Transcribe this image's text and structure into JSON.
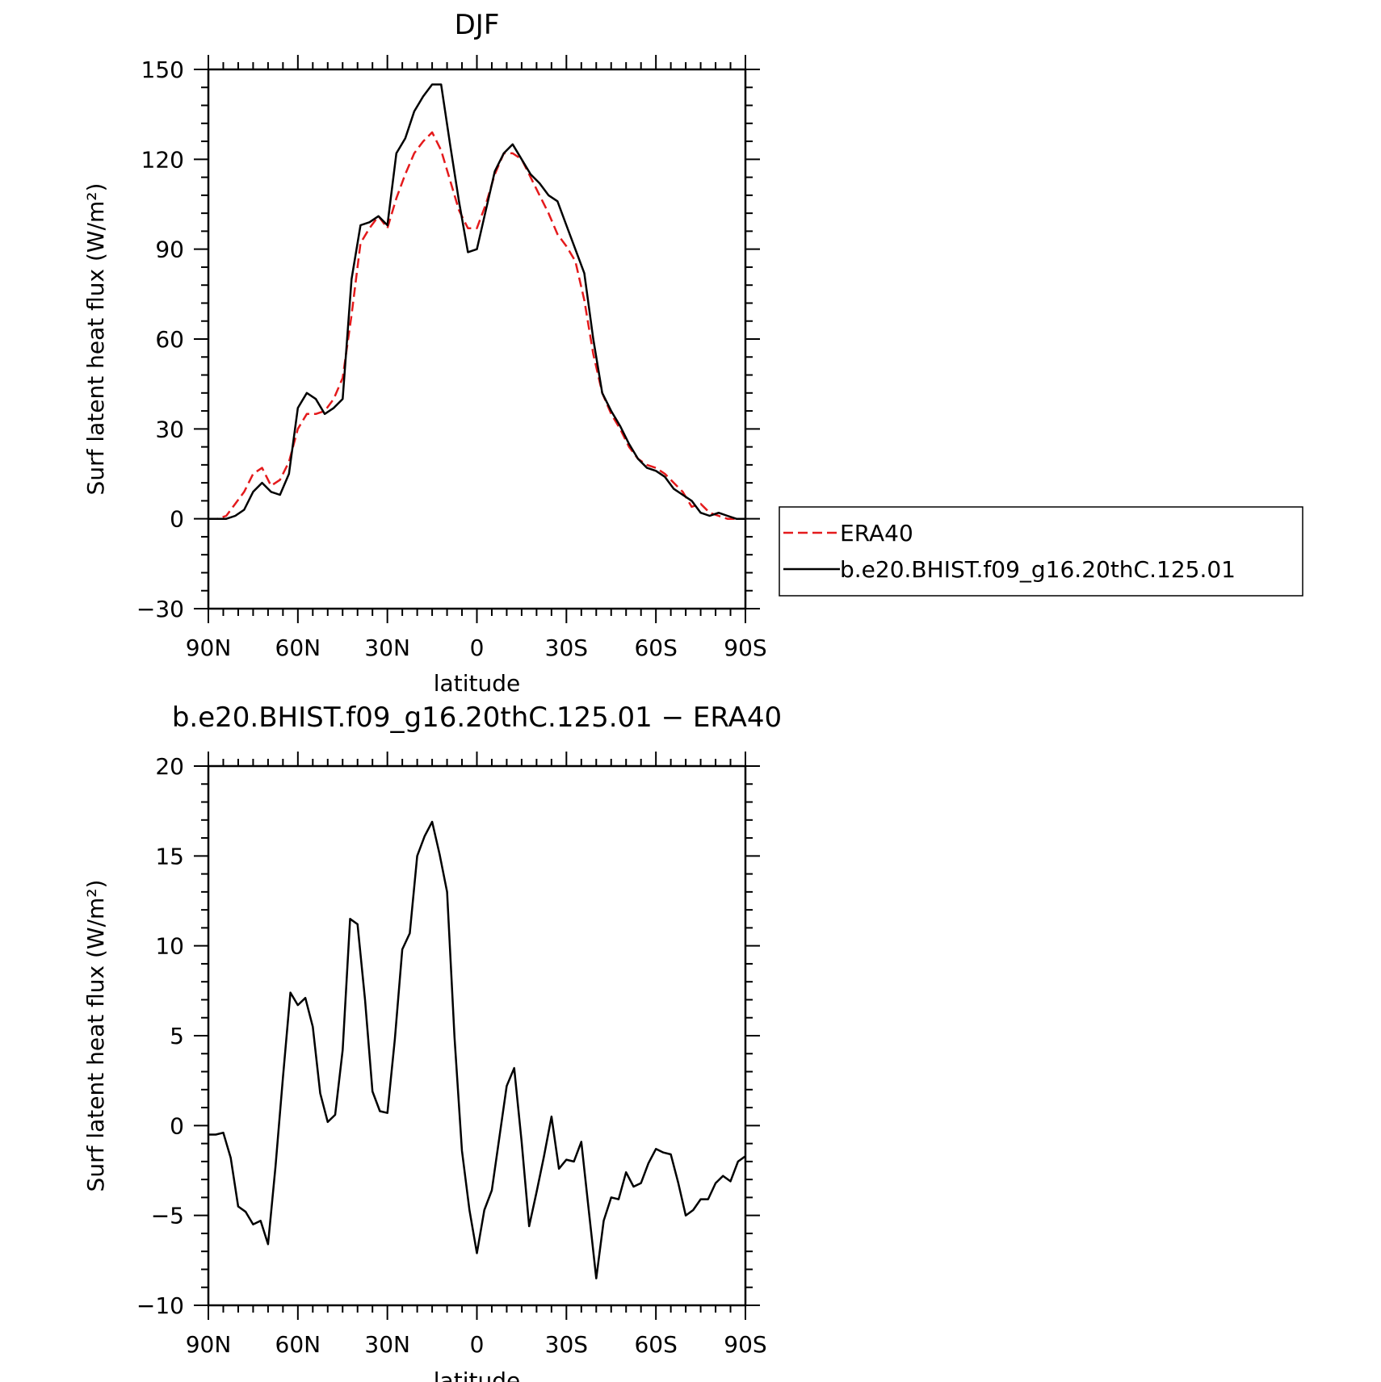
{
  "chart_data": [
    {
      "type": "line",
      "title": "DJF",
      "xlabel": "latitude",
      "ylabel": "Surf latent heat flux (W/m²)",
      "ylim": [
        -30,
        150
      ],
      "yticks": [
        -30,
        0,
        30,
        60,
        90,
        120,
        150
      ],
      "xlim": [
        90,
        -90
      ],
      "xticks": [
        90,
        60,
        30,
        0,
        -30,
        -60,
        -90
      ],
      "xticklabels": [
        "90N",
        "60N",
        "30N",
        "0",
        "30S",
        "60S",
        "90S"
      ],
      "legend_position": "right",
      "series": [
        {
          "name": "ERA40",
          "color": "#e41a1c",
          "dash": true,
          "x": [
            90,
            87,
            84,
            81,
            78,
            75,
            72,
            69,
            66,
            63,
            60,
            57,
            54,
            51,
            48,
            45,
            42,
            39,
            36,
            33,
            30,
            27,
            24,
            21,
            18,
            15,
            12,
            9,
            6,
            3,
            0,
            -3,
            -6,
            -9,
            -12,
            -15,
            -18,
            -21,
            -24,
            -27,
            -30,
            -33,
            -36,
            -39,
            -42,
            -45,
            -48,
            -51,
            -54,
            -57,
            -60,
            -63,
            -66,
            -69,
            -72,
            -75,
            -78,
            -81,
            -84,
            -87,
            -90
          ],
          "y": [
            0,
            0,
            1,
            5,
            9,
            15,
            17,
            11,
            13,
            19,
            30,
            35,
            35,
            36,
            40,
            47,
            68,
            92,
            97,
            101,
            97,
            107,
            115,
            122,
            126,
            129,
            123,
            113,
            103,
            97,
            97,
            105,
            115,
            122,
            122,
            120,
            114,
            108,
            102,
            95,
            91,
            86,
            73,
            55,
            42,
            35,
            30,
            24,
            20,
            18,
            17,
            15,
            12,
            9,
            4,
            5,
            2,
            1,
            0,
            0,
            0
          ],
          "x_note": ""
        },
        {
          "name": "b.e20.BHIST.f09_g16.20thC.125.01",
          "color": "#000000",
          "dash": false,
          "x": [
            90,
            87,
            84,
            81,
            78,
            75,
            72,
            69,
            66,
            63,
            60,
            57,
            54,
            51,
            48,
            45,
            42,
            39,
            36,
            33,
            30,
            27,
            24,
            21,
            18,
            15,
            12,
            9,
            6,
            3,
            0,
            -3,
            -6,
            -9,
            -12,
            -15,
            -18,
            -21,
            -24,
            -27,
            -30,
            -33,
            -36,
            -39,
            -42,
            -45,
            -48,
            -51,
            -54,
            -57,
            -60,
            -63,
            -66,
            -69,
            -72,
            -75,
            -78,
            -81,
            -84,
            -87,
            -90
          ],
          "y": [
            0,
            0,
            0,
            1,
            3,
            9,
            12,
            9,
            8,
            15,
            37,
            42,
            40,
            35,
            37,
            40,
            80,
            98,
            99,
            101,
            98,
            122,
            127,
            136,
            141,
            145,
            145,
            125,
            106,
            89,
            90,
            103,
            116,
            122,
            125,
            120,
            115,
            112,
            108,
            106,
            98,
            90,
            82,
            60,
            42,
            36,
            31,
            25,
            20,
            17,
            16,
            14,
            10,
            8,
            6,
            2,
            1,
            2,
            1,
            0,
            0
          ]
        }
      ]
    },
    {
      "type": "line",
      "title": "b.e20.BHIST.f09_g16.20thC.125.01 − ERA40",
      "xlabel": "latitude",
      "ylabel": "Surf latent heat flux (W/m²)",
      "ylim": [
        -10,
        20
      ],
      "yticks": [
        -10,
        -5,
        0,
        5,
        10,
        15,
        20
      ],
      "xlim": [
        90,
        -90
      ],
      "xticks": [
        90,
        60,
        30,
        0,
        -30,
        -60,
        -90
      ],
      "xticklabels": [
        "90N",
        "60N",
        "30N",
        "0",
        "30S",
        "60S",
        "90S"
      ],
      "series": [
        {
          "color": "#000000",
          "dash": false,
          "x": [
            90,
            87.5,
            85,
            82.5,
            80,
            77.5,
            75,
            72.5,
            70,
            67.5,
            65,
            62.5,
            60,
            57.5,
            55,
            52.5,
            50,
            47.5,
            45,
            42.5,
            40,
            37.5,
            35,
            32.5,
            30,
            27.5,
            25,
            22.5,
            20,
            17.5,
            15,
            12.5,
            10,
            7.5,
            5,
            2.5,
            0,
            -2.5,
            -5,
            -7.5,
            -10,
            -12.5,
            -15,
            -17.5,
            -20,
            -22.5,
            -25,
            -27.5,
            -30,
            -32.5,
            -35,
            -37.5,
            -40,
            -42.5,
            -45,
            -47.5,
            -50,
            -52.5,
            -55,
            -57.5,
            -60,
            -62.5,
            -65,
            -67.5,
            -70,
            -72.5,
            -75,
            -77.5,
            -80,
            -82.5,
            -85,
            -87.5,
            -90
          ],
          "y": [
            -0.5,
            -0.5,
            -0.4,
            -1.8,
            -4.5,
            -4.8,
            -5.5,
            -5.3,
            -6.6,
            -2.3,
            2.7,
            7.4,
            6.7,
            7.1,
            5.5,
            1.8,
            0.2,
            0.6,
            4.2,
            11.5,
            11.2,
            7.0,
            1.9,
            0.8,
            0.7,
            4.8,
            9.8,
            10.7,
            15.0,
            16.1,
            16.9,
            15.1,
            13.0,
            4.9,
            -1.4,
            -4.7,
            -7.1,
            -4.7,
            -3.6,
            -0.7,
            2.2,
            3.2,
            -0.9,
            -5.6,
            -3.7,
            -1.7,
            0.5,
            -2.4,
            -1.9,
            -2.0,
            -0.9,
            -4.7,
            -8.5,
            -5.3,
            -4.0,
            -4.1,
            -2.6,
            -3.4,
            -3.2,
            -2.1,
            -1.3,
            -1.5,
            -1.6,
            -3.2,
            -5.0,
            -4.7,
            -4.1,
            -4.1,
            -3.2,
            -2.8,
            -3.1,
            -2.0,
            -1.7
          ]
        }
      ]
    }
  ]
}
